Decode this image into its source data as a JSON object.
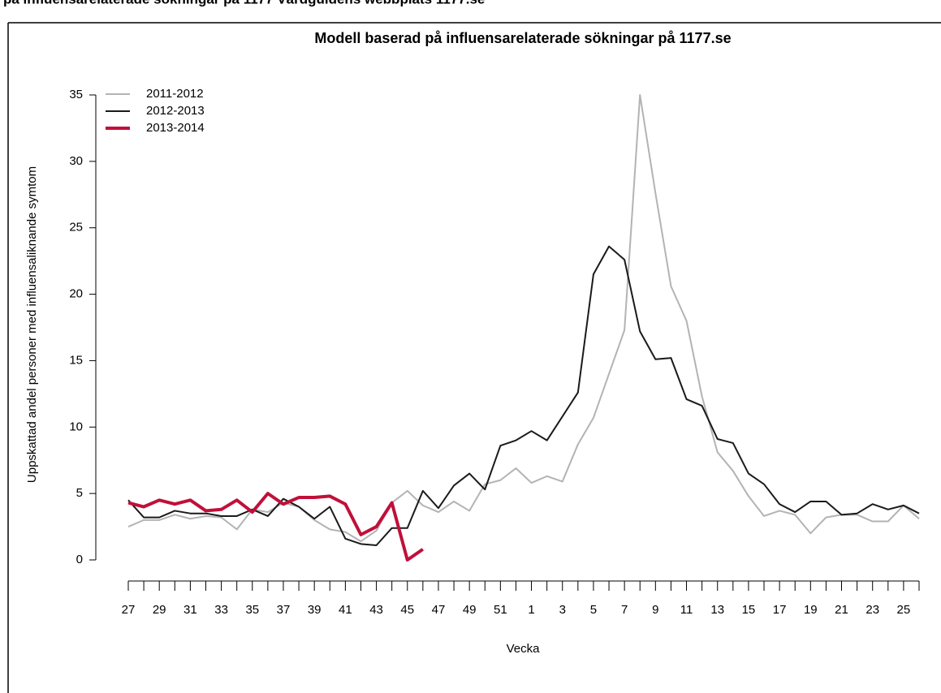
{
  "header": "på influensarelaterade sökningar på 1177 Vårdguidens webbplats 1177.se",
  "chart_data": {
    "type": "line",
    "title": "Modell baserad på influensarelaterade sökningar på 1177.se",
    "x_label": "Vecka",
    "y_label": "Uppskattad andel personer med influensaliknande symtom",
    "categories": [
      "27",
      null,
      "29",
      null,
      "31",
      null,
      "33",
      null,
      "35",
      null,
      "37",
      null,
      "39",
      null,
      "41",
      null,
      "43",
      null,
      "45",
      null,
      "47",
      null,
      "49",
      null,
      "51",
      null,
      "1",
      null,
      "3",
      null,
      "5",
      null,
      "7",
      null,
      "9",
      null,
      "11",
      null,
      "13",
      null,
      "15",
      null,
      "17",
      null,
      "19",
      null,
      "21",
      null,
      "23",
      null,
      "25",
      null
    ],
    "ylim": [
      0,
      35
    ],
    "yticks": [
      0,
      5,
      10,
      15,
      20,
      25,
      30,
      35
    ],
    "legend": "top-left",
    "series": [
      {
        "name": "2011-2012",
        "color": "#b3b3b3",
        "width": 2,
        "values": [
          2.5,
          3.0,
          3.0,
          3.4,
          3.1,
          3.3,
          3.2,
          2.3,
          3.8,
          3.6,
          4.3,
          4.0,
          3.0,
          2.3,
          2.1,
          1.4,
          2.2,
          4.3,
          5.2,
          4.1,
          3.6,
          4.4,
          3.7,
          5.7,
          6.0,
          6.9,
          5.8,
          6.3,
          5.9,
          8.7,
          10.7,
          14.0,
          17.3,
          35.0,
          27.6,
          20.6,
          18.0,
          12.3,
          8.1,
          6.7,
          4.8,
          3.3,
          3.7,
          3.4,
          2.0,
          3.2,
          3.4,
          3.4,
          2.9,
          2.9,
          4.1,
          3.1
        ]
      },
      {
        "name": "2012-2013",
        "color": "#1a1a1a",
        "width": 2,
        "values": [
          4.5,
          3.2,
          3.2,
          3.7,
          3.5,
          3.5,
          3.3,
          3.3,
          3.8,
          3.3,
          4.6,
          4.0,
          3.1,
          4.0,
          1.6,
          1.2,
          1.1,
          2.4,
          2.4,
          5.2,
          3.9,
          5.6,
          6.5,
          5.3,
          8.6,
          9.0,
          9.7,
          9.0,
          10.8,
          12.6,
          21.5,
          23.6,
          22.6,
          17.2,
          15.1,
          15.2,
          12.1,
          11.6,
          9.1,
          8.8,
          6.5,
          5.7,
          4.2,
          3.6,
          4.4,
          4.4,
          3.4,
          3.5,
          4.2,
          3.8,
          4.1,
          3.5
        ]
      },
      {
        "name": "2013-2014",
        "color": "#c0103a",
        "width": 4,
        "values": [
          4.3,
          4.0,
          4.5,
          4.2,
          4.5,
          3.7,
          3.8,
          4.5,
          3.6,
          5.0,
          4.2,
          4.7,
          4.7,
          4.8,
          4.2,
          1.9,
          2.5,
          4.3,
          0.0,
          0.8,
          null,
          null,
          null,
          null,
          null,
          null,
          null,
          null,
          null,
          null,
          null,
          null,
          null,
          null,
          null,
          null,
          null,
          null,
          null,
          null,
          null,
          null,
          null,
          null,
          null,
          null,
          null,
          null,
          null,
          null,
          null,
          null
        ]
      }
    ]
  }
}
